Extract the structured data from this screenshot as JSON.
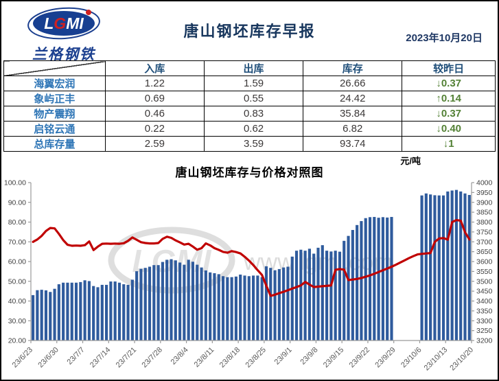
{
  "header": {
    "logo_text": "LGMI",
    "logo_sub": "兰格钢铁",
    "title": "唐山钢坯库存早报",
    "date": "2023年10月20日"
  },
  "table": {
    "columns": [
      "入库",
      "出库",
      "库存",
      "较昨日"
    ],
    "rows": [
      {
        "name": "海翼宏润",
        "inbound": "1.22",
        "outbound": "1.59",
        "stock": "26.66",
        "change": "↓0.37"
      },
      {
        "name": "象屿正丰",
        "inbound": "0.69",
        "outbound": "0.55",
        "stock": "24.42",
        "change": "↑0.14"
      },
      {
        "name": "物产震翔",
        "inbound": "0.46",
        "outbound": "0.83",
        "stock": "35.84",
        "change": "↓0.37"
      },
      {
        "name": "启铭云通",
        "inbound": "0.22",
        "outbound": "0.62",
        "stock": "6.82",
        "change": "↓0.40"
      },
      {
        "name": "总库存量",
        "inbound": "2.59",
        "outbound": "3.59",
        "stock": "93.74",
        "change": "↓1"
      }
    ],
    "change_color": "#538135",
    "name_color": "#2e75b6",
    "header_color": "#1f4e79"
  },
  "chart_data": {
    "type": "combo_bar_line",
    "title": "唐山钢坯库存与价格对照图",
    "right_axis_unit": "元/吨",
    "watermark": "www.lgmi.com",
    "watermark_logo": "LGMI",
    "x_tick_labels": [
      "23/6/23",
      "23/6/30",
      "23/7/7",
      "23/7/14",
      "23/7/21",
      "23/7/28",
      "23/8/4",
      "23/8/11",
      "23/8/18",
      "23/8/25",
      "23/9/1",
      "23/9/8",
      "23/9/15",
      "23/9/22",
      "23/9/29",
      "23/10/6",
      "23/10/13",
      "23/10/20"
    ],
    "days_per_tick": 6,
    "left_ylim": [
      20,
      100
    ],
    "left_step": 10,
    "left_tick_format": "0.00",
    "right_ylim": [
      3200,
      4000
    ],
    "right_step": 50,
    "grid": false,
    "legend": "none",
    "bar_color": "#2f5b9d",
    "line_color": "#c00000",
    "series": [
      {
        "name": "库存",
        "type": "bar",
        "axis": "left",
        "values": [
          43.0,
          45.5,
          45.7,
          45.4,
          44.6,
          46.2,
          48.5,
          49.3,
          49.3,
          49.3,
          49.3,
          49.6,
          50.5,
          50.1,
          47.6,
          47.0,
          48.2,
          48.2,
          49.9,
          49.9,
          49.3,
          48.5,
          48.2,
          50.8,
          55.1,
          56.3,
          56.8,
          57.4,
          58.2,
          58.2,
          59.8,
          60.9,
          61.2,
          60.6,
          59.5,
          58.4,
          60.9,
          59.9,
          58.4,
          57.0,
          55.5,
          54.5,
          54.1,
          53.6,
          52.6,
          52.1,
          52.1,
          52.4,
          53.4,
          52.9,
          52.6,
          52.9,
          52.9,
          52.1,
          57.6,
          56.8,
          55.6,
          56.2,
          57.0,
          57.4,
          62.5,
          65.5,
          66.0,
          65.5,
          66.5,
          64.0,
          67.0,
          68.3,
          65.5,
          65.1,
          65.5,
          65.0,
          70.5,
          73.0,
          76.0,
          78.5,
          80.5,
          82.0,
          82.5,
          82.6,
          82.2,
          82.5,
          82.3,
          82.6,
          null,
          null,
          null,
          null,
          null,
          null,
          93.5,
          94.5,
          94.0,
          93.6,
          93.5,
          93.5,
          95.5,
          96.0,
          96.3,
          95.5,
          94.5,
          93.74
        ]
      },
      {
        "name": "价格",
        "type": "line",
        "axis": "right",
        "values": [
          3700,
          3712,
          3730,
          3755,
          3770,
          3768,
          3740,
          3708,
          3685,
          3680,
          3681,
          3680,
          3683,
          3702,
          3658,
          3676,
          3690,
          3691,
          3690,
          3691,
          3690,
          3693,
          3705,
          3722,
          3710,
          3698,
          3694,
          3692,
          3692,
          3694,
          3715,
          3726,
          3720,
          3707,
          3697,
          3686,
          3690,
          3676,
          3660,
          3668,
          3692,
          3682,
          3668,
          3659,
          3649,
          3645,
          3653,
          3648,
          3641,
          3624,
          3604,
          3582,
          3556,
          3532,
          3478,
          3426,
          3432,
          3440,
          3447,
          3455,
          3463,
          3471,
          3479,
          3497,
          3483,
          3471,
          3473,
          3475,
          3477,
          3479,
          3558,
          3562,
          3559,
          3506,
          3509,
          3512,
          3517,
          3523,
          3530,
          3538,
          3547,
          3556,
          3565,
          3574,
          3584,
          3595,
          3606,
          3617,
          3627,
          3636,
          3639,
          3641,
          3643,
          3700,
          3717,
          3719,
          3711,
          3800,
          3810,
          3807,
          3748,
          3712
        ]
      }
    ]
  }
}
